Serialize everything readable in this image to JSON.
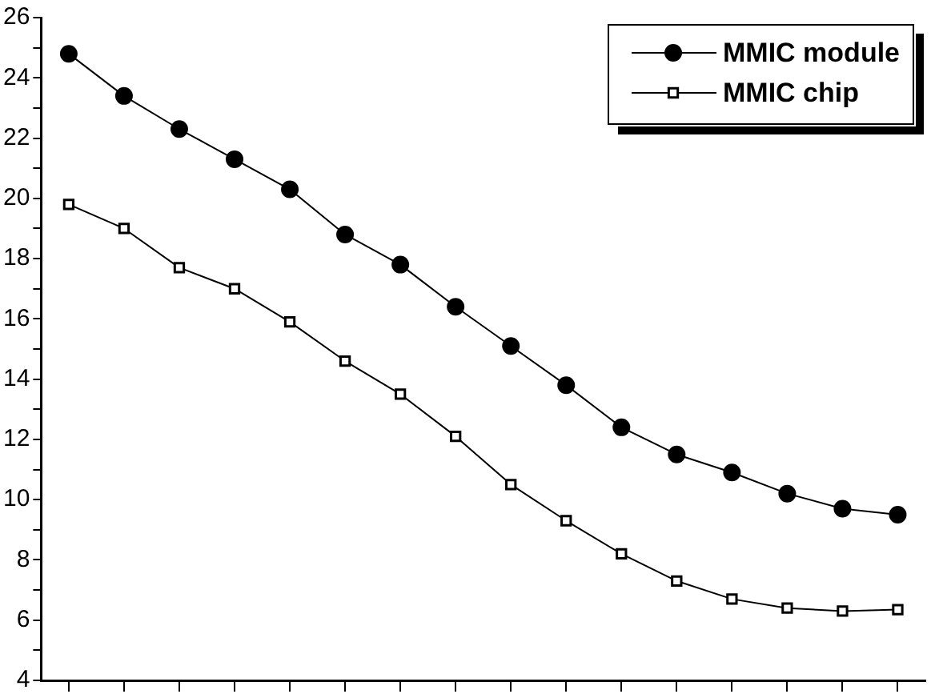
{
  "chart_data": {
    "type": "line",
    "categories": [
      null,
      null,
      null,
      null,
      null,
      null,
      null,
      null,
      null,
      null,
      null,
      null,
      null,
      null,
      null,
      null
    ],
    "series": [
      {
        "name": "MMIC module",
        "color": "#000000",
        "marker": "circle",
        "values": [
          24.8,
          23.4,
          22.3,
          21.3,
          20.3,
          18.8,
          17.8,
          16.4,
          15.1,
          13.8,
          12.4,
          11.5,
          10.9,
          10.2,
          9.7,
          9.5
        ]
      },
      {
        "name": "MMIC chip",
        "color": "#000000",
        "marker": "square",
        "values": [
          19.8,
          19.0,
          17.7,
          17.0,
          15.9,
          14.6,
          13.5,
          12.1,
          10.5,
          9.3,
          8.2,
          7.3,
          6.7,
          6.4,
          6.3,
          6.35
        ]
      }
    ],
    "ylim": [
      4,
      26
    ],
    "yticks": [
      4,
      {
        "value": 5,
        "label": null
      },
      6,
      {
        "value": 7,
        "label": null
      },
      8,
      {
        "value": 9,
        "label": null
      },
      10,
      {
        "value": 11,
        "label": null
      },
      12,
      {
        "value": 13,
        "label": null
      },
      14,
      {
        "value": 15,
        "label": null
      },
      16,
      {
        "value": 17,
        "label": null
      },
      18,
      {
        "value": 19,
        "label": null
      },
      20,
      {
        "value": 21,
        "label": null
      },
      22,
      {
        "value": 23,
        "label": null
      },
      24,
      {
        "value": 25,
        "label": null
      },
      26
    ],
    "tick_labels": "y",
    "grid": false,
    "legend": "top right",
    "line_style": "solid"
  }
}
